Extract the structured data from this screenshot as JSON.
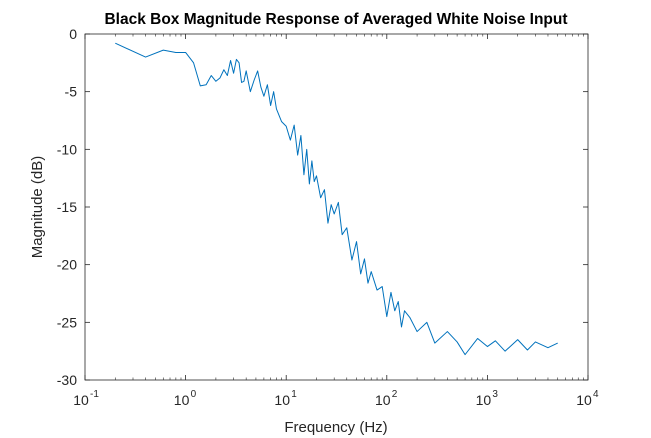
{
  "chart_data": {
    "type": "line",
    "title": "Black Box Magnitude Response of Averaged White Noise Input",
    "xlabel": "Frequency (Hz)",
    "ylabel": "Magnitude (dB)",
    "xscale": "log",
    "xlim": [
      0.1,
      10000
    ],
    "ylim": [
      -30,
      0
    ],
    "grid": false,
    "x_ticks": [
      {
        "base": "10",
        "exp": "-1"
      },
      {
        "base": "10",
        "exp": "0"
      },
      {
        "base": "10",
        "exp": "1"
      },
      {
        "base": "10",
        "exp": "2"
      },
      {
        "base": "10",
        "exp": "3"
      },
      {
        "base": "10",
        "exp": "4"
      }
    ],
    "y_ticks": [
      "0",
      "-5",
      "-10",
      "-15",
      "-20",
      "-25",
      "-30"
    ],
    "colors": {
      "line": "#0072BD",
      "axes": "#262626"
    },
    "series": [
      {
        "x": [
          0.2,
          0.4,
          0.6,
          0.8,
          1.0,
          1.2,
          1.4,
          1.6,
          1.8,
          2.0,
          2.2,
          2.4,
          2.6,
          2.8,
          3.0,
          3.2,
          3.4,
          3.6,
          3.8,
          4.0,
          4.4,
          4.8,
          5.2,
          5.6,
          6.0,
          6.5,
          7.0,
          7.5,
          8,
          9,
          10,
          11,
          12,
          13,
          14,
          15,
          16,
          17,
          18,
          19,
          20,
          22,
          24,
          26,
          28,
          30,
          33,
          36,
          40,
          45,
          50,
          55,
          60,
          65,
          70,
          80,
          90,
          100,
          110,
          120,
          130,
          140,
          150,
          170,
          200,
          250,
          300,
          400,
          500,
          600,
          800,
          1000,
          1200,
          1500,
          2000,
          2500,
          3000,
          4000,
          5000
        ],
        "y": [
          -0.8,
          -2.0,
          -1.4,
          -1.6,
          -1.6,
          -2.5,
          -4.5,
          -4.4,
          -3.6,
          -4.1,
          -3.8,
          -3.1,
          -3.6,
          -2.3,
          -3.4,
          -2.2,
          -2.5,
          -4.2,
          -4.1,
          -3.2,
          -5.0,
          -4.0,
          -3.2,
          -4.6,
          -5.4,
          -4.4,
          -6.2,
          -5.0,
          -6.5,
          -7.6,
          -8.0,
          -9.2,
          -7.9,
          -10.5,
          -8.8,
          -12.2,
          -10.0,
          -13.0,
          -11.0,
          -12.8,
          -12.3,
          -14.2,
          -13.5,
          -16.4,
          -14.8,
          -15.6,
          -14.6,
          -17.4,
          -16.8,
          -19.6,
          -18.0,
          -20.8,
          -19.5,
          -21.6,
          -20.6,
          -22.2,
          -21.9,
          -24.5,
          -22.4,
          -24.0,
          -23.2,
          -25.4,
          -24.0,
          -24.6,
          -25.8,
          -25.0,
          -26.8,
          -25.8,
          -26.7,
          -27.8,
          -26.4,
          -27.1,
          -26.6,
          -27.5,
          -26.5,
          -27.4,
          -26.7,
          -27.2,
          -26.8
        ]
      }
    ]
  }
}
